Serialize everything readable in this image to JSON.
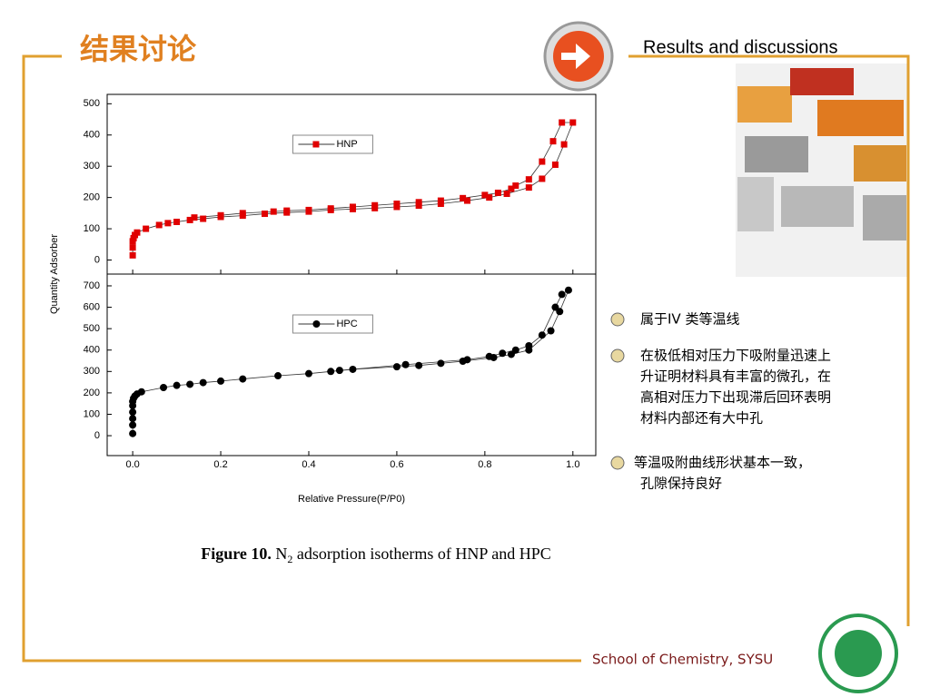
{
  "title": "结果讨论",
  "subtitle": "Results and discussions",
  "footer": "School of Chemistry, SYSU",
  "ylabel": "Quantity Adsorber",
  "caption": {
    "bold": "Figure 10.",
    "n": "N",
    "sub": "2",
    "rest": " adsorption isotherms of HNP and HPC"
  },
  "bullets": [
    [
      "属于IV 类等温线"
    ],
    [
      "在极低相对压力下吸附量迅速上",
      "升证明材料具有丰富的微孔，在",
      "高相对压力下出现滞后回环表明",
      "材料内部还有大中孔"
    ],
    [
      "等温吸附曲线形状基本一致，",
      "孔隙保持良好"
    ]
  ],
  "chart_data": [
    {
      "type": "line",
      "legend": "upper center",
      "xlim": [
        -0.058,
        1.052
      ],
      "ylim": [
        -45,
        530
      ],
      "xticks": [
        {
          "value": 0,
          "label": "0.0"
        },
        0.2,
        0.4,
        0.6,
        0.8,
        {
          "value": 1,
          "label": "1.0"
        }
      ],
      "yticks": [
        0,
        100,
        200,
        300,
        400,
        500
      ],
      "series": [
        {
          "name": "HNP",
          "color": "#e00000",
          "marker": "square",
          "x": [
            0,
            0,
            0,
            0.002,
            0.005,
            0.01,
            0.03,
            0.06,
            0.08,
            0.1,
            0.13,
            0.16,
            0.2,
            0.25,
            0.3,
            0.35,
            0.4,
            0.45,
            0.5,
            0.55,
            0.6,
            0.65,
            0.7,
            0.76,
            0.81,
            0.85,
            0.9,
            0.93,
            0.96,
            0.98,
            1.0,
            0.975,
            0.955,
            0.93,
            0.9,
            0.87,
            0.86,
            0.83,
            0.8,
            0.75,
            0.7,
            0.65,
            0.6,
            0.55,
            0.5,
            0.45,
            0.4,
            0.35,
            0.32,
            0.25,
            0.2,
            0.14
          ],
          "values": [
            15,
            40,
            60,
            70,
            80,
            88,
            100,
            112,
            118,
            122,
            128,
            132,
            138,
            142,
            148,
            152,
            155,
            160,
            163,
            166,
            170,
            174,
            180,
            190,
            200,
            212,
            232,
            260,
            305,
            370,
            440,
            440,
            380,
            315,
            258,
            238,
            228,
            215,
            208,
            198,
            190,
            185,
            180,
            175,
            170,
            165,
            160,
            158,
            155,
            150,
            143,
            136
          ]
        }
      ]
    },
    {
      "type": "line",
      "legend": "upper center",
      "xlim": [
        -0.058,
        1.052
      ],
      "ylim": [
        -93,
        755
      ],
      "xlabel": "Relative Pressure(P/P0)",
      "xticks": [
        {
          "value": 0,
          "label": "0.0"
        },
        0.2,
        0.4,
        0.6,
        0.8,
        {
          "value": 1,
          "label": "1.0"
        }
      ],
      "yticks": [
        0,
        100,
        200,
        300,
        400,
        500,
        600,
        700
      ],
      "series": [
        {
          "name": "HPC",
          "color": "#000000",
          "marker": "circle",
          "x": [
            0,
            0,
            0,
            0,
            0,
            0,
            0.002,
            0.005,
            0.01,
            0.02,
            0.07,
            0.1,
            0.13,
            0.16,
            0.2,
            0.25,
            0.33,
            0.4,
            0.45,
            0.5,
            0.6,
            0.65,
            0.7,
            0.75,
            0.82,
            0.86,
            0.9,
            0.95,
            0.97,
            0.99,
            0.975,
            0.96,
            0.93,
            0.9,
            0.87,
            0.84,
            0.81,
            0.76,
            0.62,
            0.47
          ],
          "values": [
            10,
            50,
            80,
            110,
            140,
            160,
            175,
            185,
            195,
            205,
            225,
            235,
            240,
            248,
            255,
            265,
            280,
            290,
            300,
            310,
            322,
            328,
            338,
            348,
            365,
            380,
            400,
            490,
            580,
            680,
            660,
            600,
            470,
            420,
            400,
            385,
            370,
            355,
            332,
            305
          ]
        }
      ]
    }
  ]
}
